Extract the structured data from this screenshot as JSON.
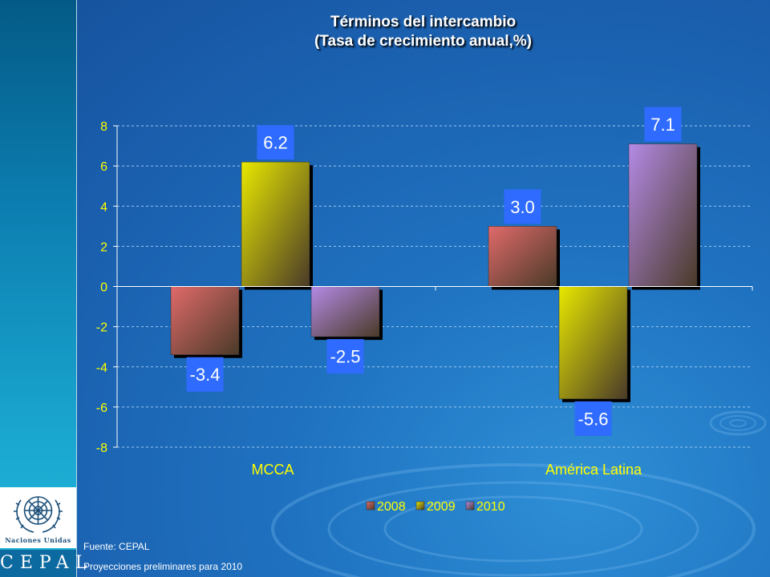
{
  "sidebar": {
    "org_name": "Naciones Unidas",
    "org_short": "CEPAL"
  },
  "title": {
    "line1": "Términos del intercambio",
    "line2": "(Tasa de crecimiento anual,%)"
  },
  "notes": {
    "source": "Fuente: CEPAL",
    "projection": "Proyecciones preliminares para 2010"
  },
  "chart_data": {
    "type": "bar",
    "categories": [
      "MCCA",
      "América Latina"
    ],
    "series": [
      {
        "name": "2008",
        "values": [
          -3.4,
          3.0
        ],
        "labels": [
          "-3.4",
          "3.0"
        ],
        "color": "#e06a6a"
      },
      {
        "name": "2009",
        "values": [
          6.2,
          -5.6
        ],
        "labels": [
          "6.2",
          "-5.6"
        ],
        "color": "#e8e800"
      },
      {
        "name": "2010",
        "values": [
          -2.5,
          7.1
        ],
        "labels": [
          "-2.5",
          "7.1"
        ],
        "color": "#b48ae6"
      }
    ],
    "ylim": [
      -8,
      8
    ],
    "yticks": [
      "8",
      "6",
      "4",
      "2",
      "0",
      "-2",
      "-4",
      "-6",
      "-8"
    ],
    "ytick_values": [
      8,
      6,
      4,
      2,
      0,
      -2,
      -4,
      -6,
      -8
    ],
    "grid": true,
    "legend_position": "bottom",
    "axis_color": "#ffffff",
    "tick_label_color": "#ffff00",
    "data_label_bg": "#2f6bff"
  }
}
